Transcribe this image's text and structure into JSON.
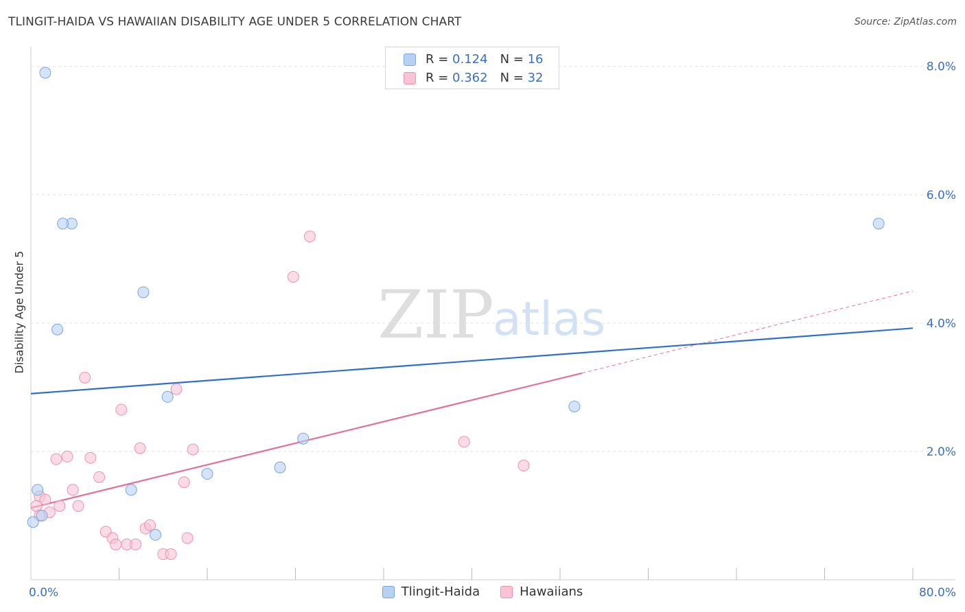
{
  "header": {
    "title": "TLINGIT-HAIDA VS HAWAIIAN DISABILITY AGE UNDER 5 CORRELATION CHART",
    "source": "Source: ZipAtlas.com"
  },
  "watermark": {
    "zip": "ZIP",
    "atlas": "atlas"
  },
  "stats": {
    "rows": [
      {
        "r_label": "R =",
        "r_value": "0.124",
        "n_label": "N =",
        "n_value": "16"
      },
      {
        "r_label": "R =",
        "r_value": "0.362",
        "n_label": "N =",
        "n_value": "32"
      }
    ]
  },
  "legend": {
    "series_a": "Tlingit-Haida",
    "series_b": "Hawaiians"
  },
  "chart_data": {
    "type": "scatter",
    "title": "TLINGIT-HAIDA VS HAWAIIAN DISABILITY AGE UNDER 5 CORRELATION CHART",
    "xlabel": "",
    "ylabel": "Disability Age Under 5",
    "xlim": [
      0,
      80
    ],
    "ylim": [
      0,
      8.2
    ],
    "x_tick_labels": [
      "0.0%",
      "80.0%"
    ],
    "y_ticks": [
      2,
      4,
      6,
      8
    ],
    "y_tick_labels": [
      "2.0%",
      "4.0%",
      "6.0%",
      "8.0%"
    ],
    "grid": true,
    "colors": {
      "series_a_fill": "#b7d1f3",
      "series_a_stroke": "#7aa6de",
      "series_a_line": "#2f6fcb",
      "series_b_fill": "#f8c3d3",
      "series_b_stroke": "#ee93b0",
      "series_b_line": "#e4719a",
      "tick_label": "#3a6fc4"
    },
    "series": [
      {
        "name": "Tlingit-Haida",
        "points": [
          [
            1.3,
            7.9
          ],
          [
            3.7,
            5.55
          ],
          [
            2.9,
            5.55
          ],
          [
            10.2,
            4.48
          ],
          [
            2.4,
            3.9
          ],
          [
            12.4,
            2.85
          ],
          [
            24.7,
            2.2
          ],
          [
            16,
            1.65
          ],
          [
            22.6,
            1.75
          ],
          [
            9.1,
            1.4
          ],
          [
            0.6,
            1.4
          ],
          [
            0.2,
            0.9
          ],
          [
            1,
            1
          ],
          [
            11.3,
            0.7
          ],
          [
            49.3,
            2.7
          ],
          [
            76.9,
            5.55
          ]
        ],
        "trend": {
          "x": [
            0,
            80
          ],
          "y": [
            2.9,
            3.92
          ],
          "style": "solid"
        }
      },
      {
        "name": "Hawaiians",
        "points": [
          [
            25.3,
            5.35
          ],
          [
            23.8,
            4.72
          ],
          [
            4.9,
            3.15
          ],
          [
            8.2,
            2.65
          ],
          [
            13.2,
            2.97
          ],
          [
            39.3,
            2.15
          ],
          [
            44.7,
            1.78
          ],
          [
            9.9,
            2.05
          ],
          [
            14.7,
            2.03
          ],
          [
            2.3,
            1.88
          ],
          [
            3.3,
            1.92
          ],
          [
            5.4,
            1.9
          ],
          [
            6.2,
            1.6
          ],
          [
            13.9,
            1.52
          ],
          [
            3.8,
            1.4
          ],
          [
            0.8,
            1.3
          ],
          [
            1.3,
            1.25
          ],
          [
            2.6,
            1.15
          ],
          [
            4.3,
            1.15
          ],
          [
            0.5,
            1.15
          ],
          [
            0.8,
            1.0
          ],
          [
            1.7,
            1.05
          ],
          [
            6.8,
            0.75
          ],
          [
            7.4,
            0.65
          ],
          [
            7.7,
            0.55
          ],
          [
            8.7,
            0.55
          ],
          [
            9.5,
            0.55
          ],
          [
            10.4,
            0.8
          ],
          [
            10.8,
            0.85
          ],
          [
            12,
            0.4
          ],
          [
            12.7,
            0.4
          ],
          [
            14.2,
            0.65
          ]
        ],
        "trend": {
          "x": [
            0,
            50
          ],
          "y": [
            1.12,
            3.22
          ],
          "style": "solid",
          "extension": {
            "x": [
              50,
              80
            ],
            "y": [
              3.22,
              4.5
            ],
            "style": "dashed"
          }
        }
      }
    ]
  }
}
